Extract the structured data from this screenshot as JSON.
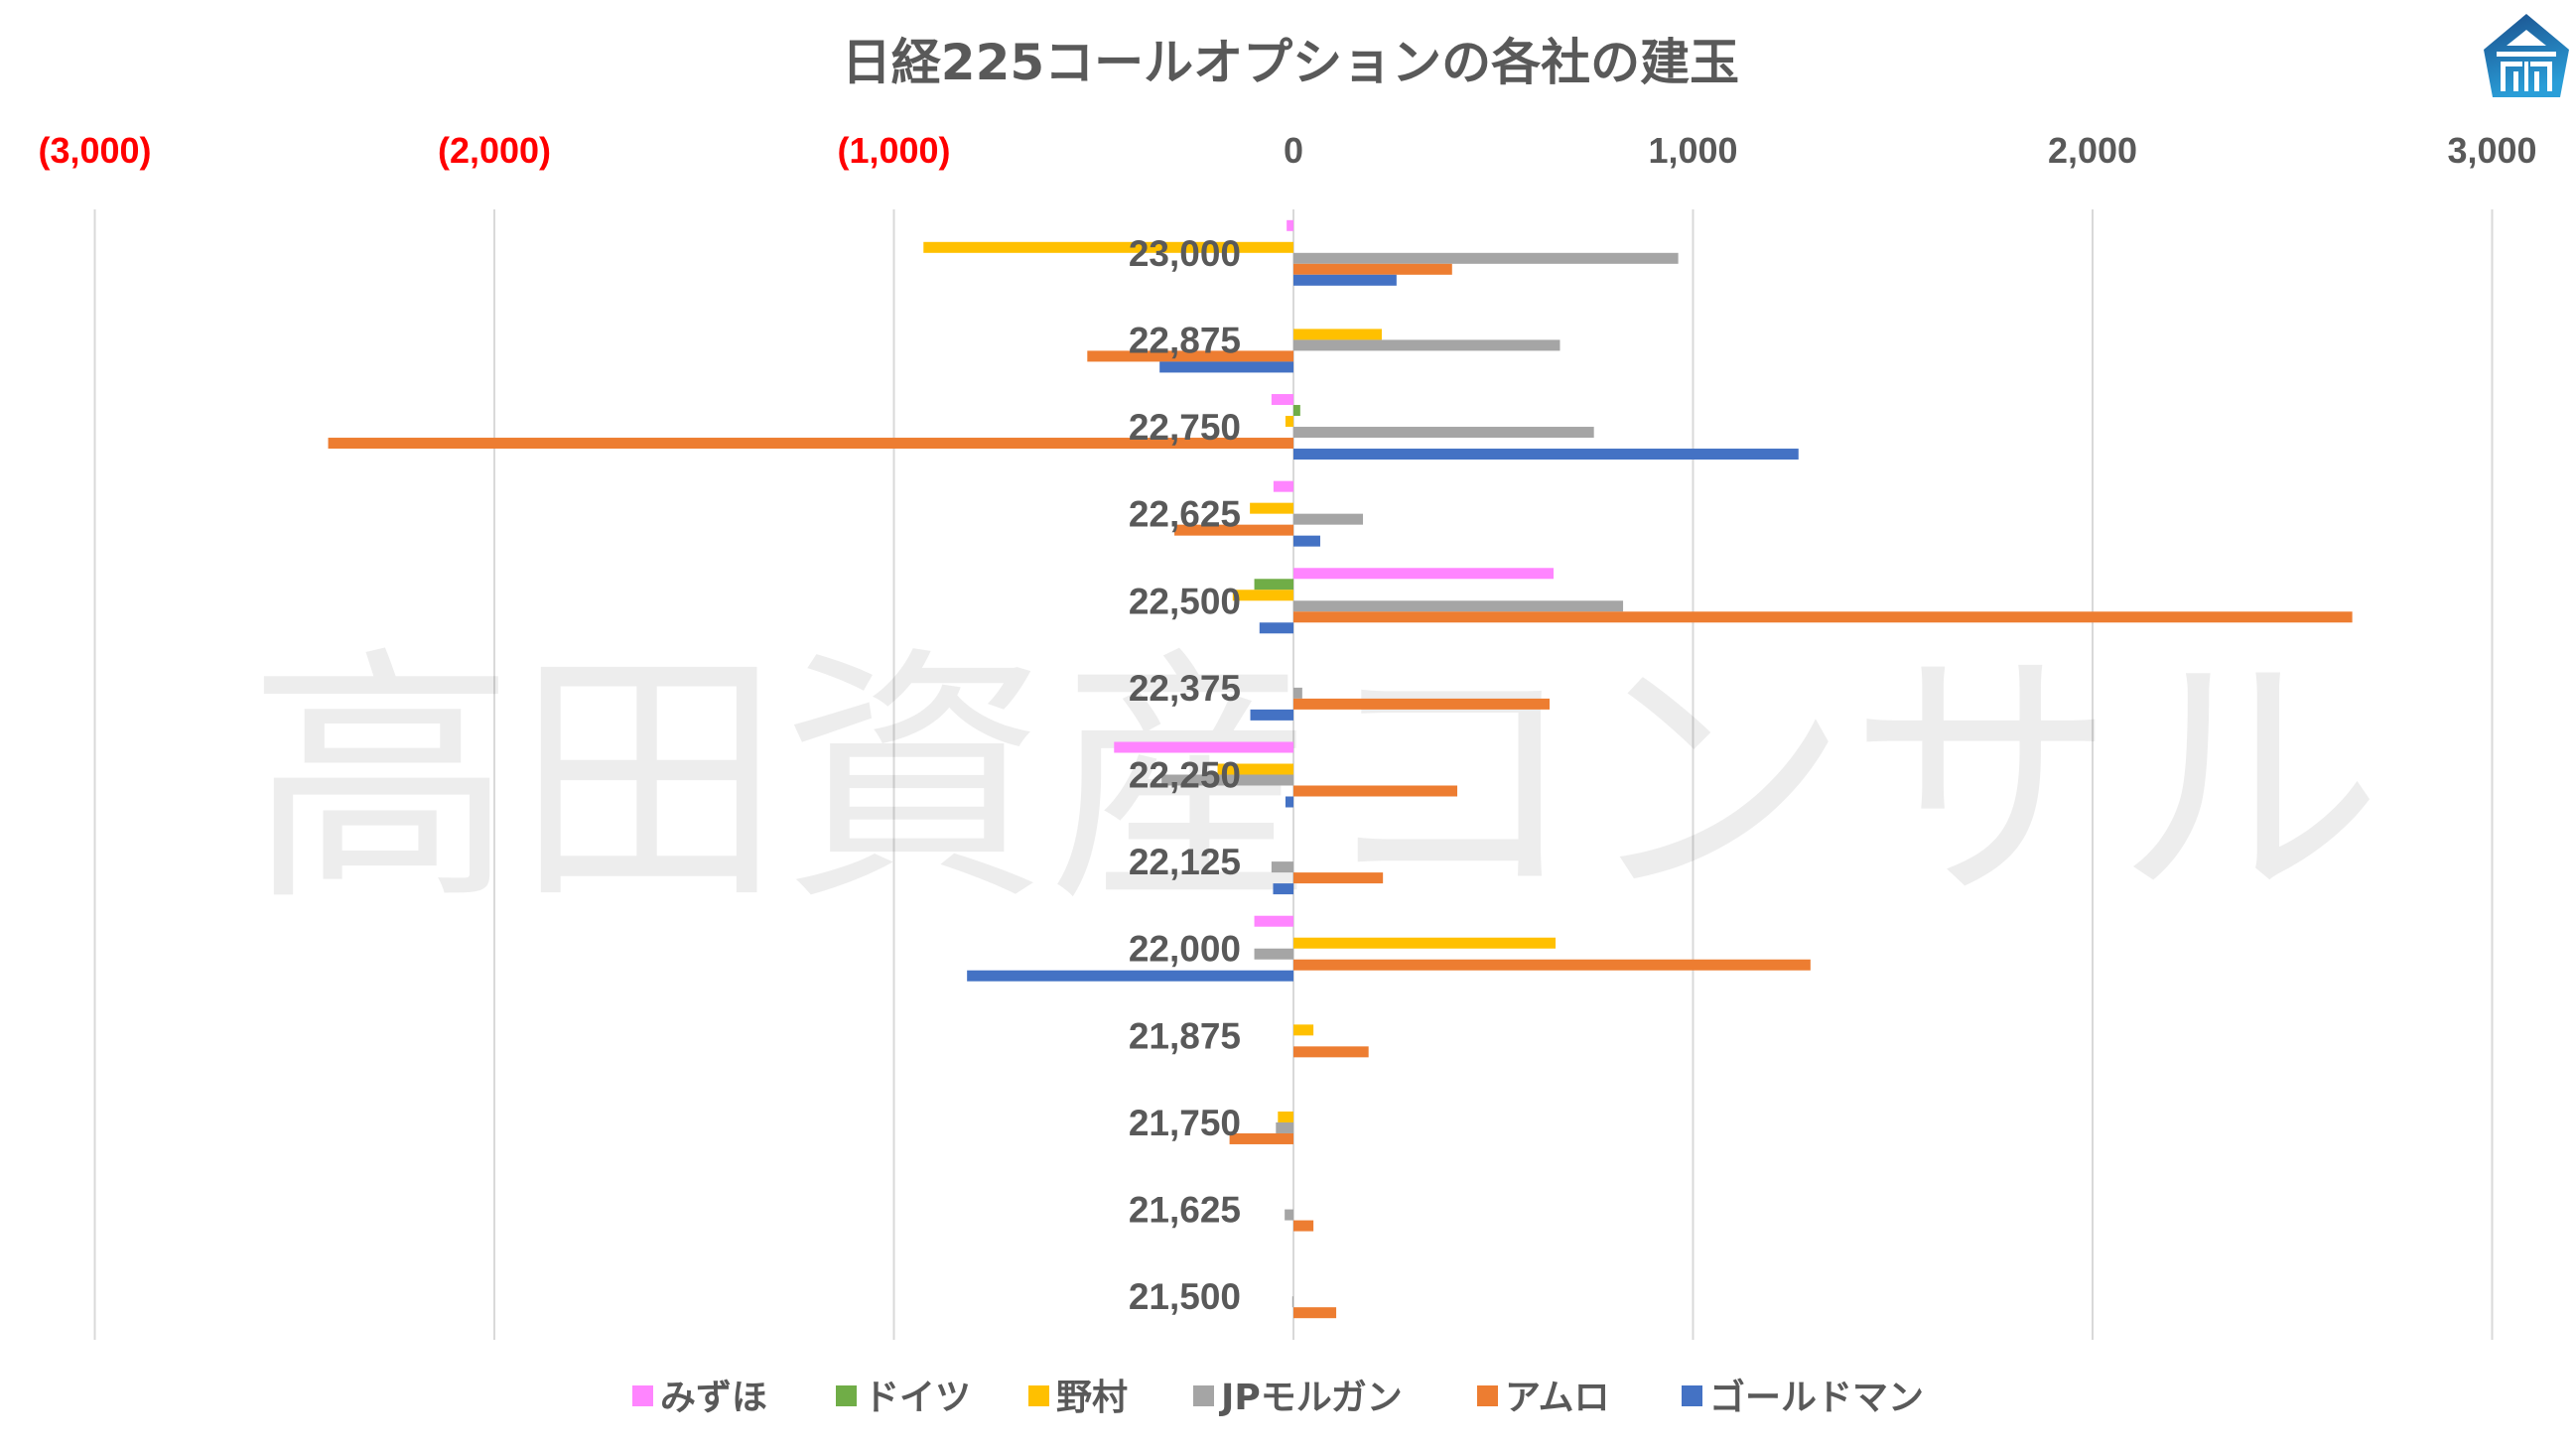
{
  "chart_data": {
    "type": "bar",
    "orientation": "horizontal",
    "title": "日経225コールオプションの各社の建玉",
    "xlabel": "",
    "ylabel": "",
    "xlim": [
      -3000,
      3000
    ],
    "x_ticks": [
      {
        "value": -3000,
        "label": "(3,000)",
        "color": "#FF0000"
      },
      {
        "value": -2000,
        "label": "(2,000)",
        "color": "#FF0000"
      },
      {
        "value": -1000,
        "label": "(1,000)",
        "color": "#FF0000"
      },
      {
        "value": 0,
        "label": "0",
        "color": "#595959"
      },
      {
        "value": 1000,
        "label": "1,000",
        "color": "#595959"
      },
      {
        "value": 2000,
        "label": "2,000",
        "color": "#595959"
      },
      {
        "value": 3000,
        "label": "3,000",
        "color": "#595959"
      }
    ],
    "grid": true,
    "legend_position": "bottom",
    "categories": [
      "23,000",
      "22,875",
      "22,750",
      "22,625",
      "22,500",
      "22,375",
      "22,250",
      "22,125",
      "22,000",
      "21,875",
      "21,750",
      "21,625",
      "21,500"
    ],
    "series": [
      {
        "name": "みずほ",
        "color": "#FF85FF",
        "values": [
          -17,
          0,
          -55,
          -50,
          651,
          0,
          -449,
          0,
          -98,
          0,
          0,
          0,
          0
        ]
      },
      {
        "name": "ドイツ",
        "color": "#70AD47",
        "values": [
          0,
          0,
          17,
          0,
          -98,
          0,
          0,
          0,
          0,
          0,
          0,
          0,
          0
        ]
      },
      {
        "name": "野村",
        "color": "#FFC000",
        "values": [
          -926,
          221,
          -20,
          -109,
          -152,
          0,
          -190,
          0,
          656,
          50,
          -39,
          0,
          0
        ]
      },
      {
        "name": "JPモルガン",
        "color": "#A5A5A5",
        "values": [
          963,
          667,
          752,
          174,
          825,
          22,
          -330,
          -55,
          -98,
          0,
          -44,
          -22,
          -3
        ]
      },
      {
        "name": "アムロ",
        "color": "#ED7D31",
        "values": [
          397,
          -516,
          -2416,
          -298,
          2650,
          641,
          410,
          224,
          1294,
          188,
          -160,
          50,
          107
        ]
      },
      {
        "name": "ゴールドマン",
        "color": "#4472C4",
        "values": [
          258,
          -335,
          1264,
          67,
          -85,
          -108,
          -20,
          -51,
          -817,
          0,
          0,
          0,
          0
        ]
      }
    ]
  },
  "watermark": "高田資産コンサル",
  "logo": {
    "name": "company-logo-icon",
    "color": "#1F6FB2"
  }
}
